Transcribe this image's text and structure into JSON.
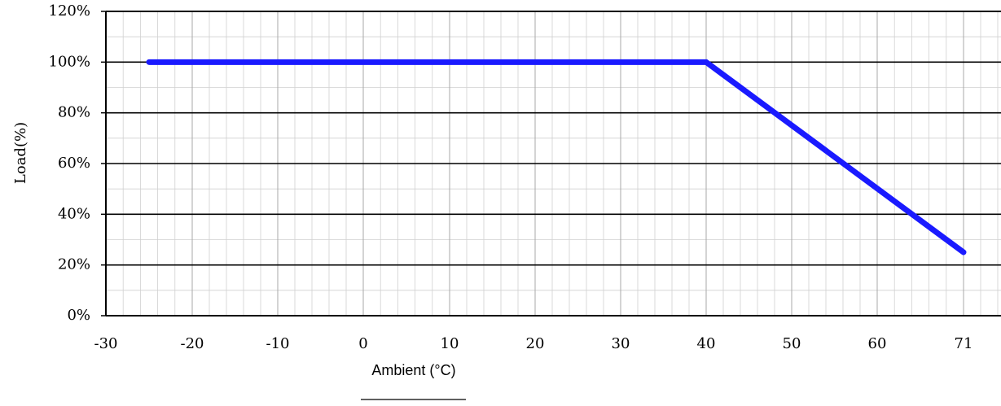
{
  "chart_data": {
    "type": "line",
    "title": "",
    "xlabel": "Ambient (°C)",
    "ylabel": "Load(%)",
    "x_ticks": [
      "-30",
      "-20",
      "-10",
      "0",
      "10",
      "20",
      "30",
      "40",
      "50",
      "60",
      "71"
    ],
    "y_ticks": [
      "0%",
      "20%",
      "40%",
      "60%",
      "80%",
      "100%",
      "120%"
    ],
    "xlim": [
      -30,
      71
    ],
    "ylim": [
      0,
      120
    ],
    "grid": true,
    "series": [
      {
        "x": [
          -25,
          40,
          71
        ],
        "y": [
          100,
          100,
          25
        ],
        "color": "#1a1aff"
      }
    ]
  }
}
